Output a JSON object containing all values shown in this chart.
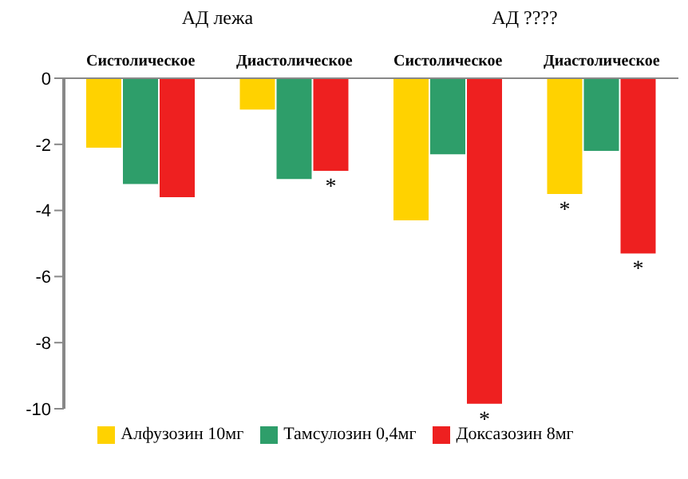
{
  "chart_data": {
    "type": "bar",
    "categories": [
      "Систолическое",
      "Диастолическое",
      "Систолическое",
      "Диастолическое"
    ],
    "series": [
      {
        "name": "Алфузозин 10мг",
        "color": "#ffd200",
        "values": [
          -2.1,
          -0.95,
          -4.3,
          -3.5
        ],
        "value_labels": [
          null,
          null,
          null,
          "*"
        ]
      },
      {
        "name": "Тамсулозин 0,4мг",
        "color": "#2e9e6a",
        "values": [
          -3.2,
          -3.05,
          -2.3,
          -2.2
        ],
        "value_labels": [
          null,
          null,
          null,
          null
        ]
      },
      {
        "name": "Доксазозин 8мг",
        "color": "#ee2020",
        "values": [
          -3.6,
          -2.8,
          -9.85,
          -5.3
        ],
        "value_labels": [
          null,
          "*",
          "*",
          "*"
        ]
      }
    ],
    "annotations": [
      "АД лежа",
      "АД ????"
    ],
    "ylim": [
      -10,
      0
    ],
    "yticks": [
      0,
      -2,
      -4,
      -6,
      -8,
      -10
    ],
    "legend": "bottom"
  }
}
